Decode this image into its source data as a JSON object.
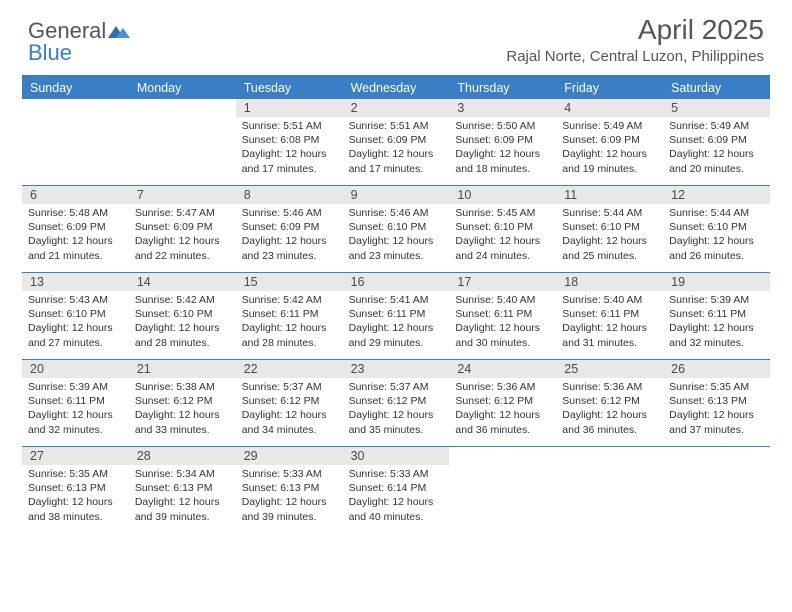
{
  "logo": {
    "text1": "General",
    "text2": "Blue"
  },
  "title": "April 2025",
  "location": "Rajal Norte, Central Luzon, Philippines",
  "colors": {
    "header_bar": "#3a7fc4",
    "daynum_bg": "#e8e8e8",
    "text": "#555555",
    "body_text": "#333333",
    "background": "#ffffff"
  },
  "layout": {
    "columns": 7,
    "rows": 5,
    "first_day_column": 2
  },
  "weekdays": [
    "Sunday",
    "Monday",
    "Tuesday",
    "Wednesday",
    "Thursday",
    "Friday",
    "Saturday"
  ],
  "days": [
    {
      "n": 1,
      "sr": "5:51 AM",
      "ss": "6:08 PM",
      "dl": "12 hours and 17 minutes."
    },
    {
      "n": 2,
      "sr": "5:51 AM",
      "ss": "6:09 PM",
      "dl": "12 hours and 17 minutes."
    },
    {
      "n": 3,
      "sr": "5:50 AM",
      "ss": "6:09 PM",
      "dl": "12 hours and 18 minutes."
    },
    {
      "n": 4,
      "sr": "5:49 AM",
      "ss": "6:09 PM",
      "dl": "12 hours and 19 minutes."
    },
    {
      "n": 5,
      "sr": "5:49 AM",
      "ss": "6:09 PM",
      "dl": "12 hours and 20 minutes."
    },
    {
      "n": 6,
      "sr": "5:48 AM",
      "ss": "6:09 PM",
      "dl": "12 hours and 21 minutes."
    },
    {
      "n": 7,
      "sr": "5:47 AM",
      "ss": "6:09 PM",
      "dl": "12 hours and 22 minutes."
    },
    {
      "n": 8,
      "sr": "5:46 AM",
      "ss": "6:09 PM",
      "dl": "12 hours and 23 minutes."
    },
    {
      "n": 9,
      "sr": "5:46 AM",
      "ss": "6:10 PM",
      "dl": "12 hours and 23 minutes."
    },
    {
      "n": 10,
      "sr": "5:45 AM",
      "ss": "6:10 PM",
      "dl": "12 hours and 24 minutes."
    },
    {
      "n": 11,
      "sr": "5:44 AM",
      "ss": "6:10 PM",
      "dl": "12 hours and 25 minutes."
    },
    {
      "n": 12,
      "sr": "5:44 AM",
      "ss": "6:10 PM",
      "dl": "12 hours and 26 minutes."
    },
    {
      "n": 13,
      "sr": "5:43 AM",
      "ss": "6:10 PM",
      "dl": "12 hours and 27 minutes."
    },
    {
      "n": 14,
      "sr": "5:42 AM",
      "ss": "6:10 PM",
      "dl": "12 hours and 28 minutes."
    },
    {
      "n": 15,
      "sr": "5:42 AM",
      "ss": "6:11 PM",
      "dl": "12 hours and 28 minutes."
    },
    {
      "n": 16,
      "sr": "5:41 AM",
      "ss": "6:11 PM",
      "dl": "12 hours and 29 minutes."
    },
    {
      "n": 17,
      "sr": "5:40 AM",
      "ss": "6:11 PM",
      "dl": "12 hours and 30 minutes."
    },
    {
      "n": 18,
      "sr": "5:40 AM",
      "ss": "6:11 PM",
      "dl": "12 hours and 31 minutes."
    },
    {
      "n": 19,
      "sr": "5:39 AM",
      "ss": "6:11 PM",
      "dl": "12 hours and 32 minutes."
    },
    {
      "n": 20,
      "sr": "5:39 AM",
      "ss": "6:11 PM",
      "dl": "12 hours and 32 minutes."
    },
    {
      "n": 21,
      "sr": "5:38 AM",
      "ss": "6:12 PM",
      "dl": "12 hours and 33 minutes."
    },
    {
      "n": 22,
      "sr": "5:37 AM",
      "ss": "6:12 PM",
      "dl": "12 hours and 34 minutes."
    },
    {
      "n": 23,
      "sr": "5:37 AM",
      "ss": "6:12 PM",
      "dl": "12 hours and 35 minutes."
    },
    {
      "n": 24,
      "sr": "5:36 AM",
      "ss": "6:12 PM",
      "dl": "12 hours and 36 minutes."
    },
    {
      "n": 25,
      "sr": "5:36 AM",
      "ss": "6:12 PM",
      "dl": "12 hours and 36 minutes."
    },
    {
      "n": 26,
      "sr": "5:35 AM",
      "ss": "6:13 PM",
      "dl": "12 hours and 37 minutes."
    },
    {
      "n": 27,
      "sr": "5:35 AM",
      "ss": "6:13 PM",
      "dl": "12 hours and 38 minutes."
    },
    {
      "n": 28,
      "sr": "5:34 AM",
      "ss": "6:13 PM",
      "dl": "12 hours and 39 minutes."
    },
    {
      "n": 29,
      "sr": "5:33 AM",
      "ss": "6:13 PM",
      "dl": "12 hours and 39 minutes."
    },
    {
      "n": 30,
      "sr": "5:33 AM",
      "ss": "6:14 PM",
      "dl": "12 hours and 40 minutes."
    }
  ],
  "labels": {
    "sunrise": "Sunrise:",
    "sunset": "Sunset:",
    "daylight": "Daylight:"
  }
}
